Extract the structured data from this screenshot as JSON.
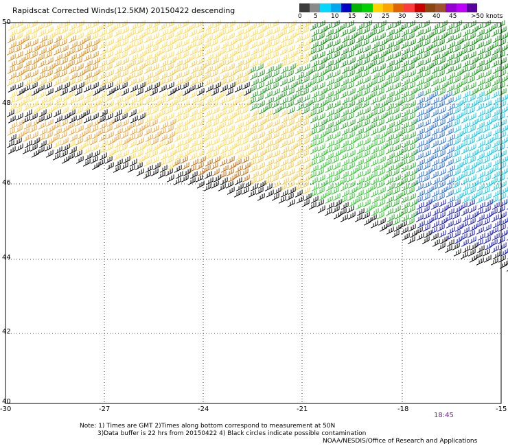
{
  "title": "Rapidscat Corrected Winds(12.5KM) 20150422 descending",
  "colorbar": {
    "colors": [
      "#3c3c3c",
      "#8a8a8a",
      "#00d8ff",
      "#00a8f0",
      "#0000c8",
      "#00b400",
      "#00d200",
      "#ffd200",
      "#ffa500",
      "#e06400",
      "#ff3c3c",
      "#c80000",
      "#8b4513",
      "#a0522d",
      "#9400d3",
      "#c000ff",
      "#5a00a0"
    ],
    "labels": [
      "0",
      "5",
      "10",
      "15",
      "20",
      "25",
      "30",
      "35",
      "40",
      "45",
      ">50 knots"
    ]
  },
  "axes": {
    "x_ticks": [
      "-30",
      "-27",
      "-24",
      "-21",
      "-18",
      "-15"
    ],
    "y_ticks": [
      "40",
      "42",
      "44",
      "46",
      "48",
      "50"
    ]
  },
  "time_label": "18:45",
  "notes": {
    "line1": "Note: 1) Times are GMT 2)Times along bottom correspond to measurement at 50N",
    "line2": "3)Data buffer is 22 hrs from 20150422 4) Black circles indicate possible contamination"
  },
  "credit": "NOAA/NESDIS/Office of Research and Applications"
}
